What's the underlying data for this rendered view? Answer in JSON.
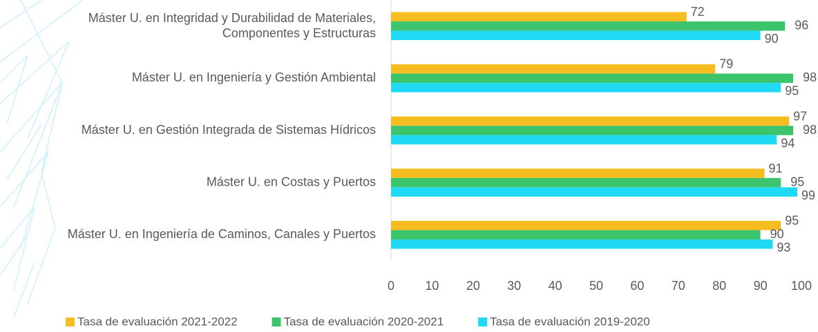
{
  "chart_data": {
    "type": "bar",
    "orientation": "horizontal",
    "categories": [
      "Máster U. en Integridad y Durabilidad de Materiales,\nComponentes y Estructuras",
      "Máster U. en Ingeniería y Gestión Ambiental",
      "Máster U. en Gestión Integrada de Sistemas Hídricos",
      "Máster U. en Costas y Puertos",
      "Máster U. en Ingeniería de Caminos, Canales y Puertos"
    ],
    "series": [
      {
        "name": "Tasa de evaluación 2021-2022",
        "color": "#f5bd1f",
        "values": [
          72,
          79,
          97,
          91,
          95
        ]
      },
      {
        "name": "Tasa de evaluación 2020-2021",
        "color": "#3cc46c",
        "values": [
          96,
          98,
          98,
          95,
          90
        ]
      },
      {
        "name": "Tasa de evaluación 2019-2020",
        "color": "#1fd9f5",
        "values": [
          90,
          95,
          94,
          99,
          93
        ]
      }
    ],
    "xlim": [
      0,
      100
    ],
    "xticks": [
      0,
      10,
      20,
      30,
      40,
      50,
      60,
      70,
      80,
      90,
      100
    ],
    "legend": "bottom"
  }
}
